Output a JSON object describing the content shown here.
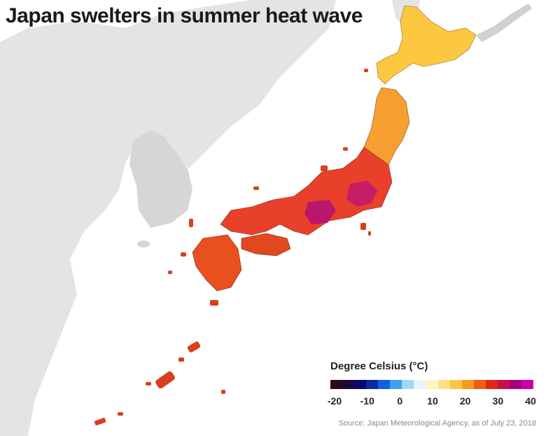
{
  "title": "Japan swelters in summer heat wave",
  "legend": {
    "title": "Degree Celsius (°C)",
    "ticks": [
      "-20",
      "-10",
      "0",
      "10",
      "20",
      "30",
      "40"
    ],
    "colors": [
      "#2a0b1e",
      "#1a0a3a",
      "#0a0a6a",
      "#0a2aa0",
      "#1060e0",
      "#40a0f0",
      "#a0d8f8",
      "#e8f4f8",
      "#fff4c0",
      "#fde080",
      "#fbc640",
      "#f89a20",
      "#f25c10",
      "#e02818",
      "#c8104a",
      "#a8007a",
      "#c800a8"
    ]
  },
  "source": "Source: Japan Meteorological Agency, as of July 23, 2018"
}
